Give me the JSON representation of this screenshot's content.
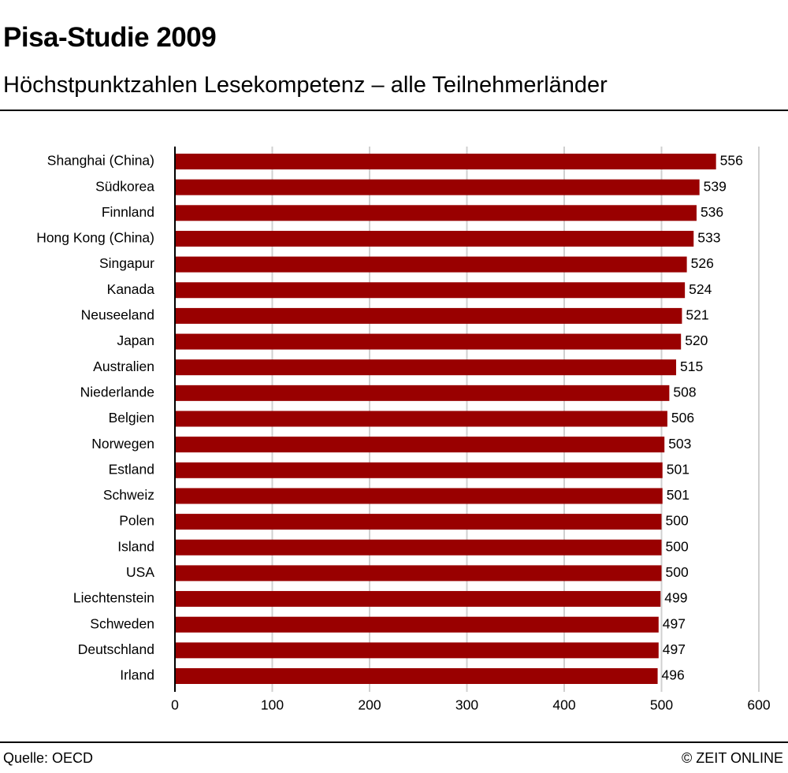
{
  "header": {
    "title": "Pisa-Studie 2009",
    "subtitle": "Höchstpunktzahlen Lesekompetenz – alle Teilnehmerländer"
  },
  "footer": {
    "source": "Quelle: OECD",
    "credit": "© ZEIT ONLINE"
  },
  "chart_data": {
    "type": "bar",
    "orientation": "horizontal",
    "title": "Pisa-Studie 2009",
    "subtitle": "Höchstpunktzahlen Lesekompetenz – alle Teilnehmerländer",
    "categories": [
      "Shanghai (China)",
      "Südkorea",
      "Finnland",
      "Hong Kong (China)",
      "Singapur",
      "Kanada",
      "Neuseeland",
      "Japan",
      "Australien",
      "Niederlande",
      "Belgien",
      "Norwegen",
      "Estland",
      "Schweiz",
      "Polen",
      "Island",
      "USA",
      "Liechtenstein",
      "Schweden",
      "Deutschland",
      "Irland"
    ],
    "values": [
      556,
      539,
      536,
      533,
      526,
      524,
      521,
      520,
      515,
      508,
      506,
      503,
      501,
      501,
      500,
      500,
      500,
      499,
      497,
      497,
      496
    ],
    "xlim": [
      0,
      600
    ],
    "xticks": [
      0,
      100,
      200,
      300,
      400,
      500,
      600
    ],
    "grid": true,
    "bar_color": "#990000",
    "grid_color": "#d0d0d0",
    "xlabel": "",
    "ylabel": ""
  }
}
